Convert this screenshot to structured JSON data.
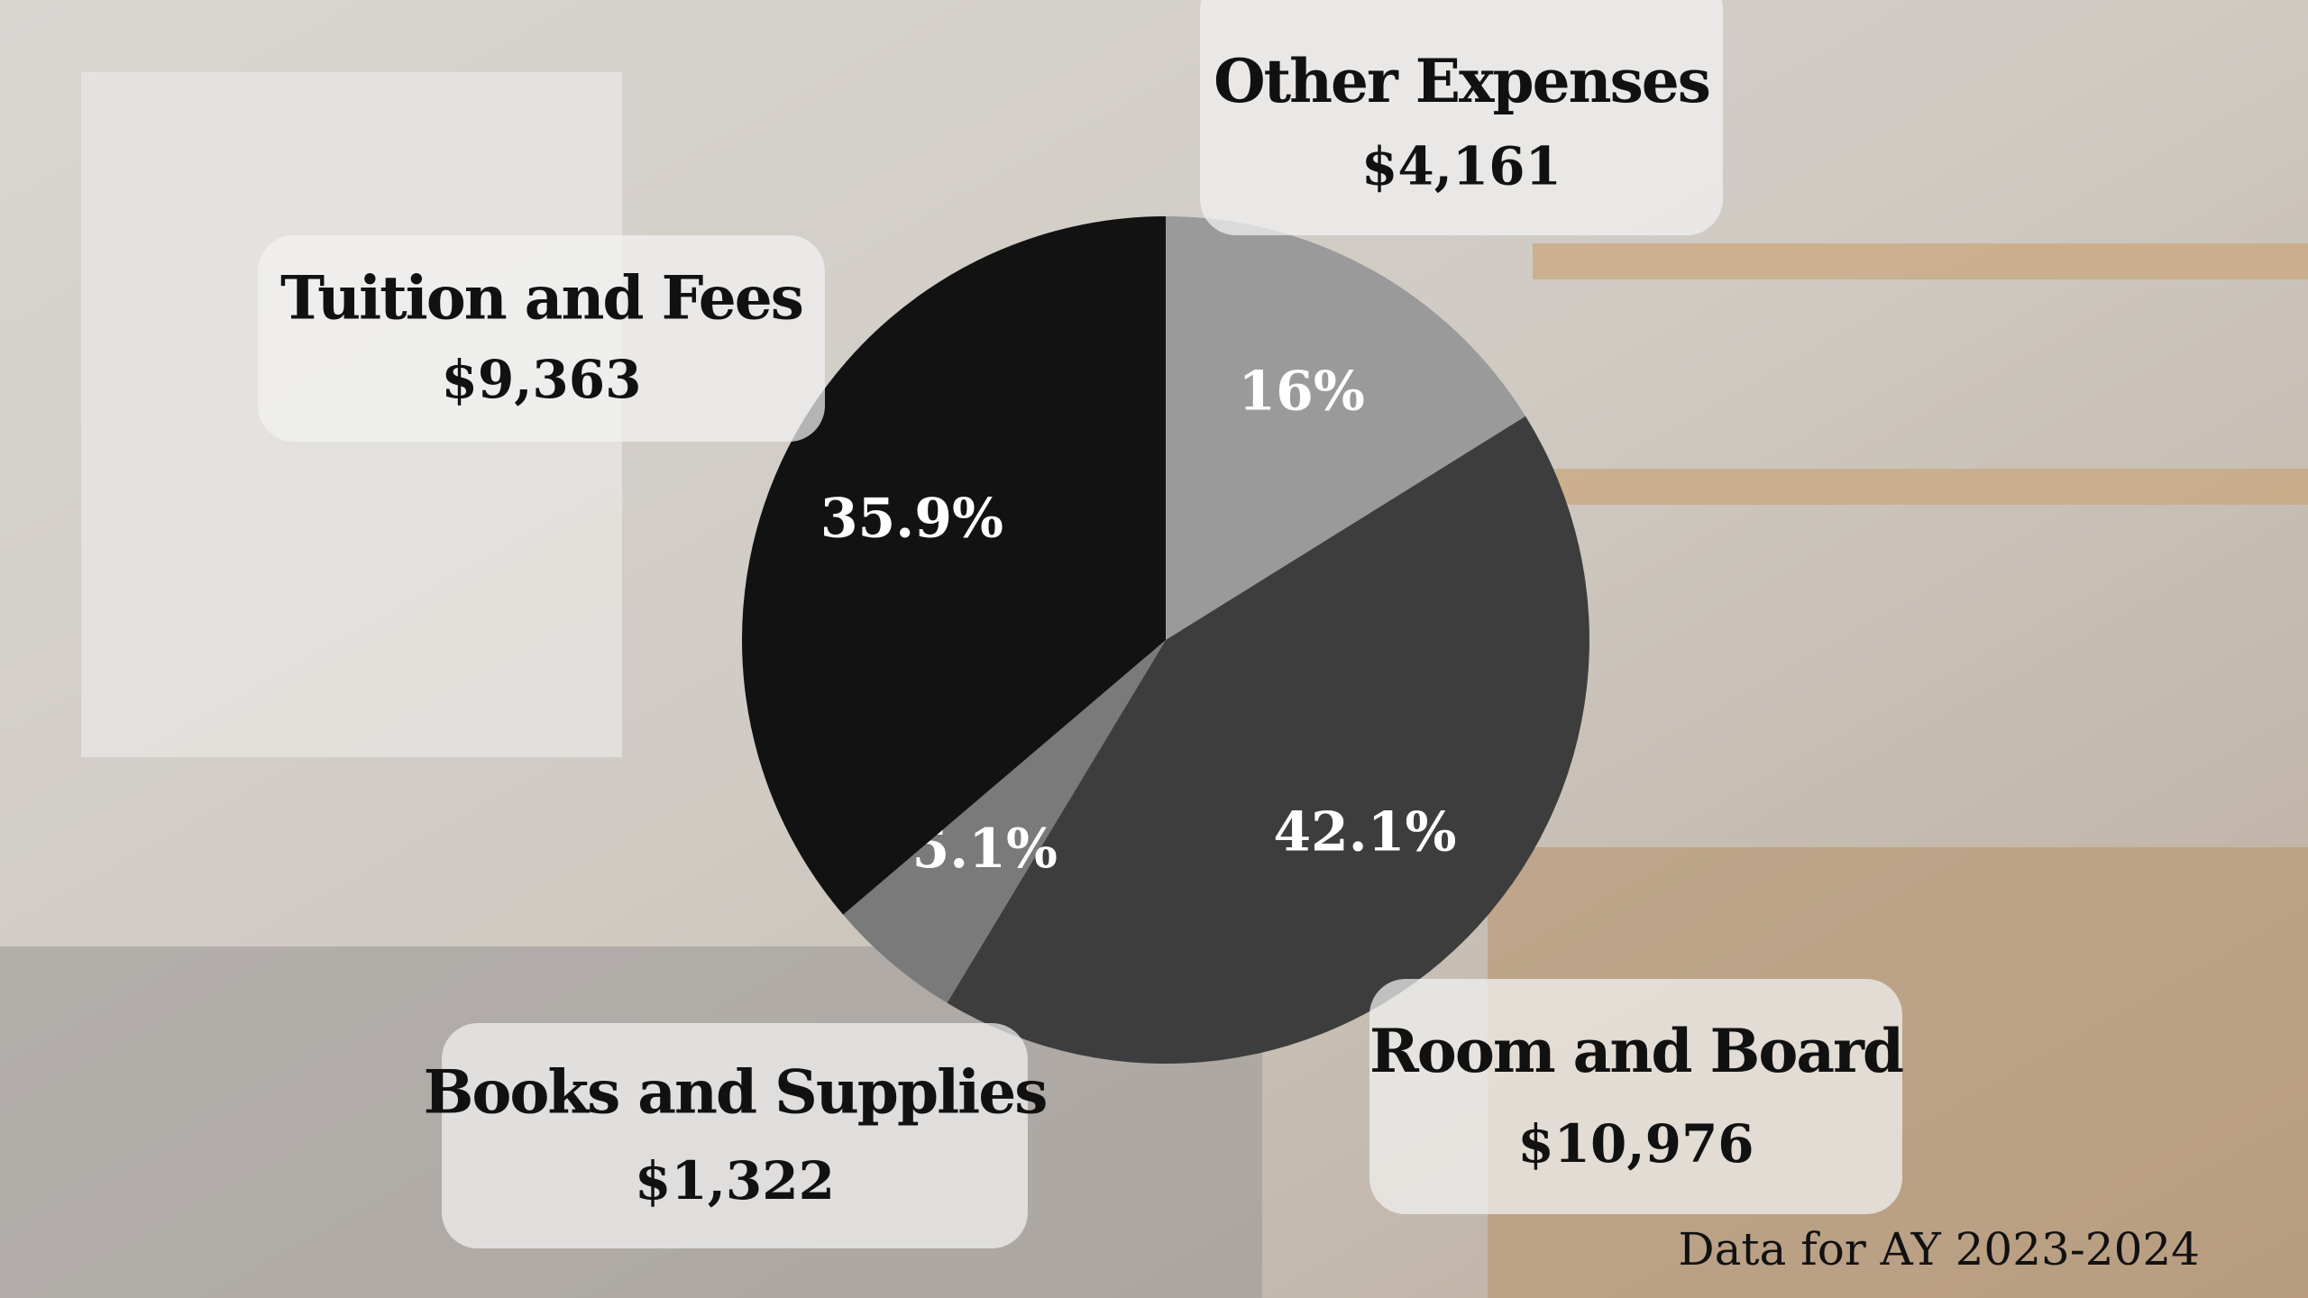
{
  "chart_data": {
    "type": "pie",
    "categories": [
      "Other Expenses",
      "Room and Board",
      "Books and Supplies",
      "Tuition and Fees"
    ],
    "values": [
      16,
      42.1,
      5.1,
      35.9
    ],
    "value_labels": [
      "16%",
      "42.1%",
      "5.1%",
      "35.9%"
    ],
    "amount_labels": [
      "$4,161",
      "$10,976",
      "$1,322",
      "$9,363"
    ],
    "colors": [
      "#9a9a9a",
      "#3d3d3d",
      "#7a7a7a",
      "#121212"
    ],
    "note": "Data for AY 2023-2024"
  }
}
